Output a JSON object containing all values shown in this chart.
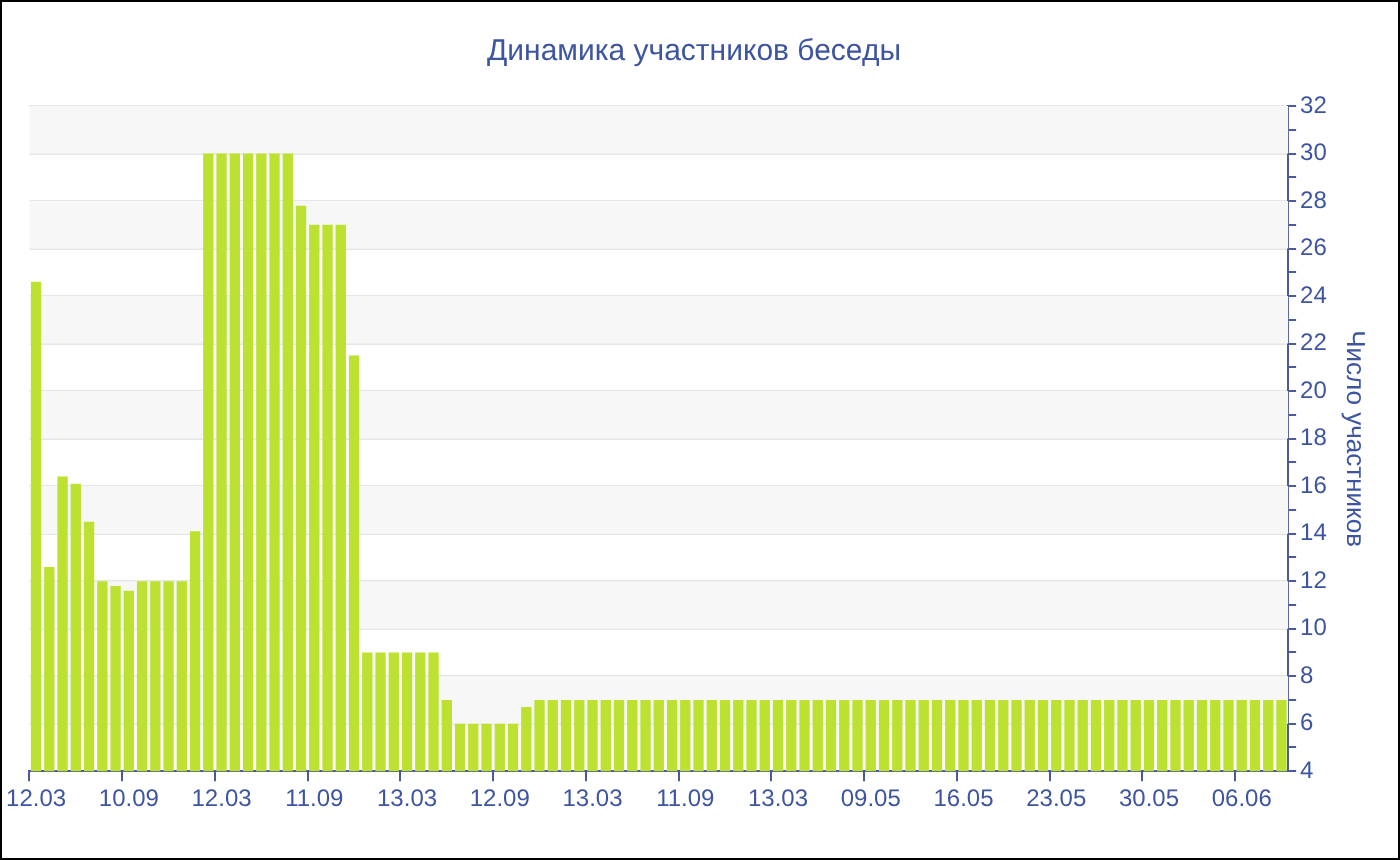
{
  "chart_data": {
    "type": "bar",
    "title": "Динамика участников беседы",
    "ylabel": "Число участников",
    "categories": [
      "12.03",
      null,
      null,
      null,
      null,
      null,
      null,
      "10.09",
      null,
      null,
      null,
      null,
      null,
      null,
      "12.03",
      null,
      null,
      null,
      null,
      null,
      null,
      "11.09",
      null,
      null,
      null,
      null,
      null,
      null,
      "13.03",
      null,
      null,
      null,
      null,
      null,
      null,
      "12.09",
      null,
      null,
      null,
      null,
      null,
      null,
      "13.03",
      null,
      null,
      null,
      null,
      null,
      null,
      "11.09",
      null,
      null,
      null,
      null,
      null,
      null,
      "13.03",
      null,
      null,
      null,
      null,
      null,
      null,
      "09.05",
      null,
      null,
      null,
      null,
      null,
      null,
      "16.05",
      null,
      null,
      null,
      null,
      null,
      null,
      "23.05",
      null,
      null,
      null,
      null,
      null,
      null,
      "30.05",
      null,
      null,
      null,
      null,
      null,
      null,
      "06.06",
      null,
      null,
      null
    ],
    "values": [
      24.6,
      12.6,
      16.4,
      16.1,
      14.5,
      12,
      11.8,
      11.6,
      12,
      12,
      12,
      12,
      14.1,
      30,
      30,
      30,
      30,
      30,
      30,
      30,
      27.8,
      27,
      27,
      27,
      21.5,
      9,
      9,
      9,
      9,
      9,
      9,
      7,
      6,
      6,
      6,
      6,
      6,
      6.7,
      7,
      7,
      7,
      7,
      7,
      7,
      7,
      7,
      7,
      7,
      7,
      7,
      7,
      7,
      7,
      7,
      7,
      7,
      7,
      7,
      7,
      7,
      7,
      7,
      7,
      7,
      7,
      7,
      7,
      7,
      7,
      7,
      7,
      7,
      7,
      7,
      7,
      7,
      7,
      7,
      7,
      7,
      7,
      7,
      7,
      7,
      7,
      7,
      7,
      7,
      7,
      7,
      7,
      7,
      7,
      7,
      7
    ],
    "color": "#bde130",
    "ylim": [
      4,
      32
    ],
    "yticks": [
      4,
      {
        "value": 5,
        "label": null
      },
      6,
      {
        "value": 7,
        "label": null
      },
      8,
      {
        "value": 9,
        "label": null
      },
      10,
      {
        "value": 11,
        "label": null
      },
      12,
      {
        "value": 13,
        "label": null
      },
      14,
      {
        "value": 15,
        "label": null
      },
      16,
      {
        "value": 17,
        "label": null
      },
      18,
      {
        "value": 19,
        "label": null
      },
      20,
      {
        "value": 21,
        "label": null
      },
      22,
      {
        "value": 23,
        "label": null
      },
      24,
      {
        "value": 25,
        "label": null
      },
      26,
      {
        "value": 27,
        "label": null
      },
      28,
      {
        "value": 29,
        "label": null
      },
      30,
      {
        "value": 31,
        "label": null
      },
      32
    ],
    "grid": "y",
    "legend": false
  }
}
